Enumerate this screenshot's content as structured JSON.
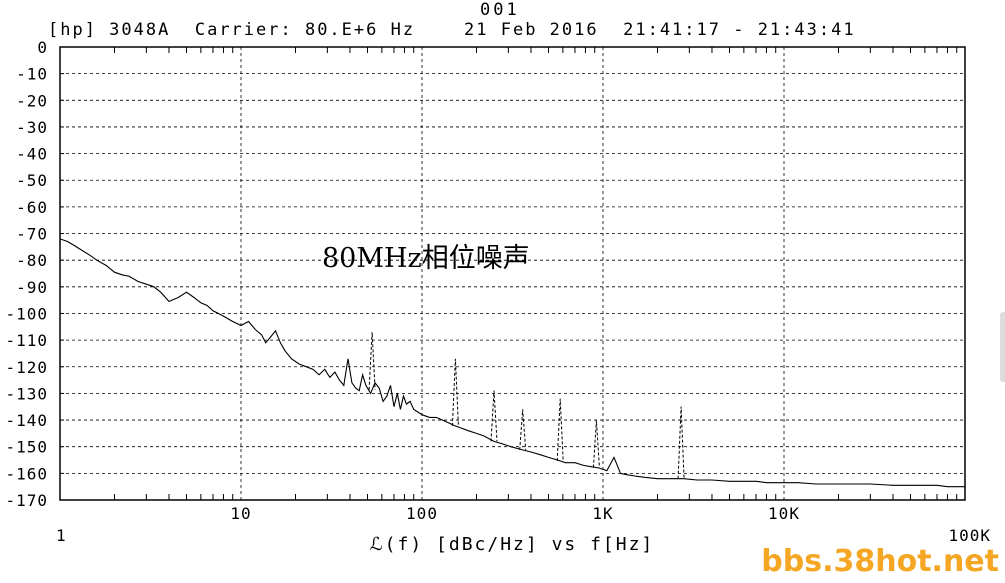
{
  "header": {
    "plot_id": "001",
    "instrument": "[hp] 3048A",
    "carrier": "Carrier: 80.E+6 Hz",
    "date": "21 Feb 2016",
    "time_range": "21:41:17 - 21:43:41"
  },
  "watermark": "bbs.38hot.net",
  "chart_data": {
    "type": "line",
    "title": "80MHz相位噪声",
    "xlabel": "ℒ(f) [dBc/Hz] vs f[Hz]",
    "ylabel": "",
    "x_scale": "log",
    "xlim": [
      1,
      100000
    ],
    "ylim": [
      -170,
      0
    ],
    "grid": true,
    "x_ticks": [
      {
        "value": 1,
        "label": "1"
      },
      {
        "value": 10,
        "label": "10"
      },
      {
        "value": 100,
        "label": "100"
      },
      {
        "value": 1000,
        "label": "1K"
      },
      {
        "value": 10000,
        "label": "10K"
      },
      {
        "value": 100000,
        "label": "100K"
      }
    ],
    "y_ticks": [
      {
        "value": 0,
        "label": "0"
      },
      {
        "value": -10,
        "label": "-10"
      },
      {
        "value": -20,
        "label": "-20"
      },
      {
        "value": -30,
        "label": "-30"
      },
      {
        "value": -40,
        "label": "-40"
      },
      {
        "value": -50,
        "label": "-50"
      },
      {
        "value": -60,
        "label": "-60"
      },
      {
        "value": -70,
        "label": "-70"
      },
      {
        "value": -80,
        "label": "-80"
      },
      {
        "value": -90,
        "label": "-90"
      },
      {
        "value": -100,
        "label": "-100"
      },
      {
        "value": -110,
        "label": "-110"
      },
      {
        "value": -120,
        "label": "-120"
      },
      {
        "value": -130,
        "label": "-130"
      },
      {
        "value": -140,
        "label": "-140"
      },
      {
        "value": -150,
        "label": "-150"
      },
      {
        "value": -160,
        "label": "-160"
      },
      {
        "value": -170,
        "label": "-170"
      }
    ],
    "series": [
      {
        "x": [
          1,
          1.1,
          1.2,
          1.3,
          1.45,
          1.6,
          1.8,
          2.0,
          2.2,
          2.4,
          2.7,
          3.0,
          3.3,
          3.6,
          4.0,
          4.5,
          5.0,
          5.5,
          6.0,
          6.5,
          7.0,
          7.5,
          8.0,
          9.0,
          10,
          11,
          12,
          13,
          13.7,
          14.5,
          15.5,
          16.5,
          17.5,
          19,
          21,
          23,
          25,
          27,
          29,
          31,
          33,
          35,
          37,
          39,
          41,
          43,
          45,
          47,
          49,
          52,
          55,
          58,
          61,
          64,
          67,
          70,
          73,
          76,
          79,
          82,
          86,
          90,
          95,
          100,
          110,
          120,
          130,
          140,
          150,
          165,
          180,
          200,
          220,
          250,
          280,
          310,
          350,
          400,
          450,
          500,
          560,
          620,
          700,
          780,
          860,
          950,
          1050,
          1150,
          1250,
          1350,
          1500,
          1700,
          2000,
          2400,
          2800,
          3300,
          4000,
          5000,
          6000,
          7000,
          8000,
          10000,
          12000,
          15000,
          20000,
          25000,
          30000,
          40000,
          50000,
          60000,
          70000,
          80000,
          90000,
          100000
        ],
        "y": [
          -72,
          -73,
          -74.5,
          -76,
          -78,
          -80,
          -82,
          -84.5,
          -85.5,
          -86,
          -88,
          -89,
          -90,
          -92,
          -95.5,
          -94,
          -92,
          -94,
          -96,
          -97,
          -99,
          -100,
          -101,
          -103,
          -104.5,
          -103,
          -106,
          -108,
          -111,
          -109,
          -106.5,
          -111,
          -114,
          -117,
          -119,
          -120,
          -121,
          -123,
          -121,
          -124,
          -122,
          -125,
          -127,
          -117,
          -126,
          -128,
          -129,
          -123,
          -127,
          -130,
          -126,
          -128,
          -133,
          -131,
          -127,
          -135,
          -130,
          -136,
          -131,
          -134,
          -133,
          -136,
          -137,
          -138,
          -139,
          -139,
          -140,
          -141,
          -142,
          -143,
          -144,
          -145,
          -146,
          -148,
          -149,
          -150,
          -151,
          -152,
          -153,
          -154,
          -155,
          -156,
          -156,
          -157,
          -157.5,
          -158,
          -159,
          -154,
          -160,
          -160.5,
          -161,
          -161.5,
          -162,
          -162,
          -162,
          -162.5,
          -162.5,
          -163,
          -163,
          -163,
          -163.5,
          -163.5,
          -163.5,
          -164,
          -164,
          -164,
          -164,
          -164.5,
          -164.5,
          -164.5,
          -164.5,
          -165,
          -165,
          -165
        ]
      },
      {
        "x": [
          53,
          153,
          250,
          360,
          580,
          920,
          2700
        ],
        "y": [
          -107,
          -117,
          -129,
          -136,
          -132,
          -140,
          -135
        ]
      }
    ]
  }
}
